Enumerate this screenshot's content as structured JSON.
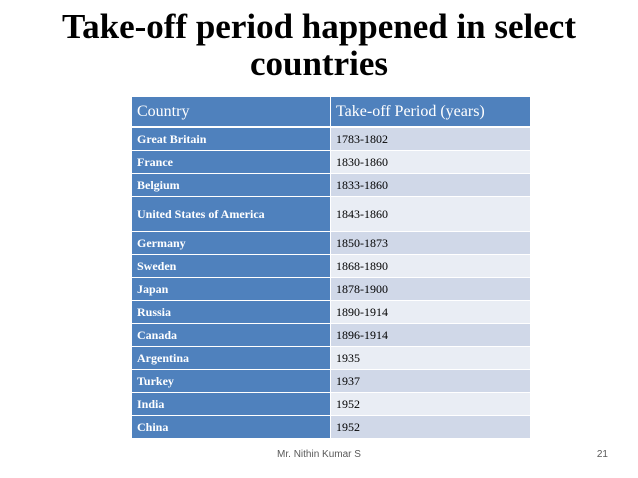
{
  "slide": {
    "title": "Take-off period happened in select countries"
  },
  "table": {
    "headers": {
      "country": "Country",
      "period": "Take-off Period (years)"
    },
    "rows": [
      {
        "country": "Great Britain",
        "period": "1783-1802"
      },
      {
        "country": "France",
        "period": "1830-1860"
      },
      {
        "country": "Belgium",
        "period": "1833-1860"
      },
      {
        "country": "United States of America",
        "period": "1843-1860"
      },
      {
        "country": "Germany",
        "period": "1850-1873"
      },
      {
        "country": "Sweden",
        "period": "1868-1890"
      },
      {
        "country": "Japan",
        "period": "1878-1900"
      },
      {
        "country": "Russia",
        "period": "1890-1914"
      },
      {
        "country": "Canada",
        "period": "1896-1914"
      },
      {
        "country": "Argentina",
        "period": "1935"
      },
      {
        "country": "Turkey",
        "period": "1937"
      },
      {
        "country": "India",
        "period": "1952"
      },
      {
        "country": "China",
        "period": "1952"
      }
    ]
  },
  "footer": {
    "author": "Mr. Nithin Kumar S",
    "page_number": "21"
  },
  "colors": {
    "header_blue": "#4f81bd",
    "row_band_dark": "#d0d8e8",
    "row_band_light": "#e9edf4"
  }
}
